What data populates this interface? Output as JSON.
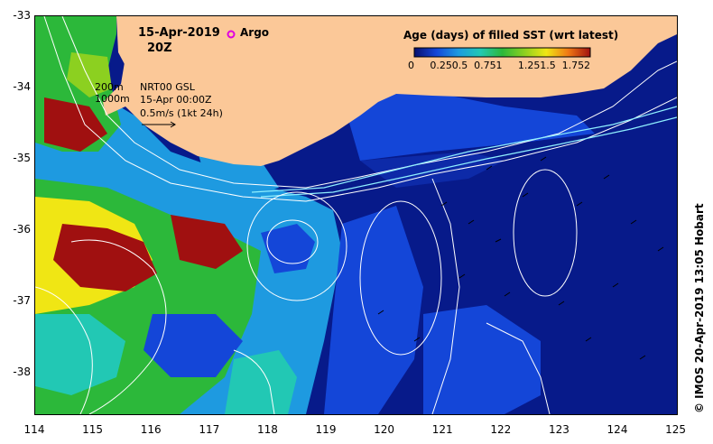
{
  "map": {
    "date": "15-Apr-2019",
    "time": "20Z",
    "argo_label": "Argo",
    "legend_title": "Age (days) of filled SST (wrt latest)",
    "colorbar_ticks": [
      "0",
      "0.25",
      "0.5",
      "0.75",
      "1",
      "1.25",
      "1.5",
      "1.75",
      "2"
    ],
    "colorbar_colors": [
      "#08106e",
      "#1446d8",
      "#1e9ae0",
      "#22c8b4",
      "#2cb83a",
      "#8cd020",
      "#f0e614",
      "#f07814",
      "#a01010"
    ],
    "depth_200": "200m",
    "depth_1000": "1000m",
    "product": "NRT00 GSL",
    "product_time": "15-Apr 00:00Z",
    "vector_scale": "0.5m/s (1kt 24h)",
    "lat_labels": [
      "-33",
      "-34",
      "-35",
      "-36",
      "-37",
      "-38"
    ],
    "lon_labels": [
      "114",
      "115",
      "116",
      "117",
      "118",
      "119",
      "120",
      "121",
      "122",
      "123",
      "124",
      "125"
    ],
    "credit": "© IMOS 20-Apr-2019 13:05 Hobart",
    "land_color": "#fbc898",
    "ocean_color": "#071a8a",
    "argo_color": "#e000e0"
  }
}
